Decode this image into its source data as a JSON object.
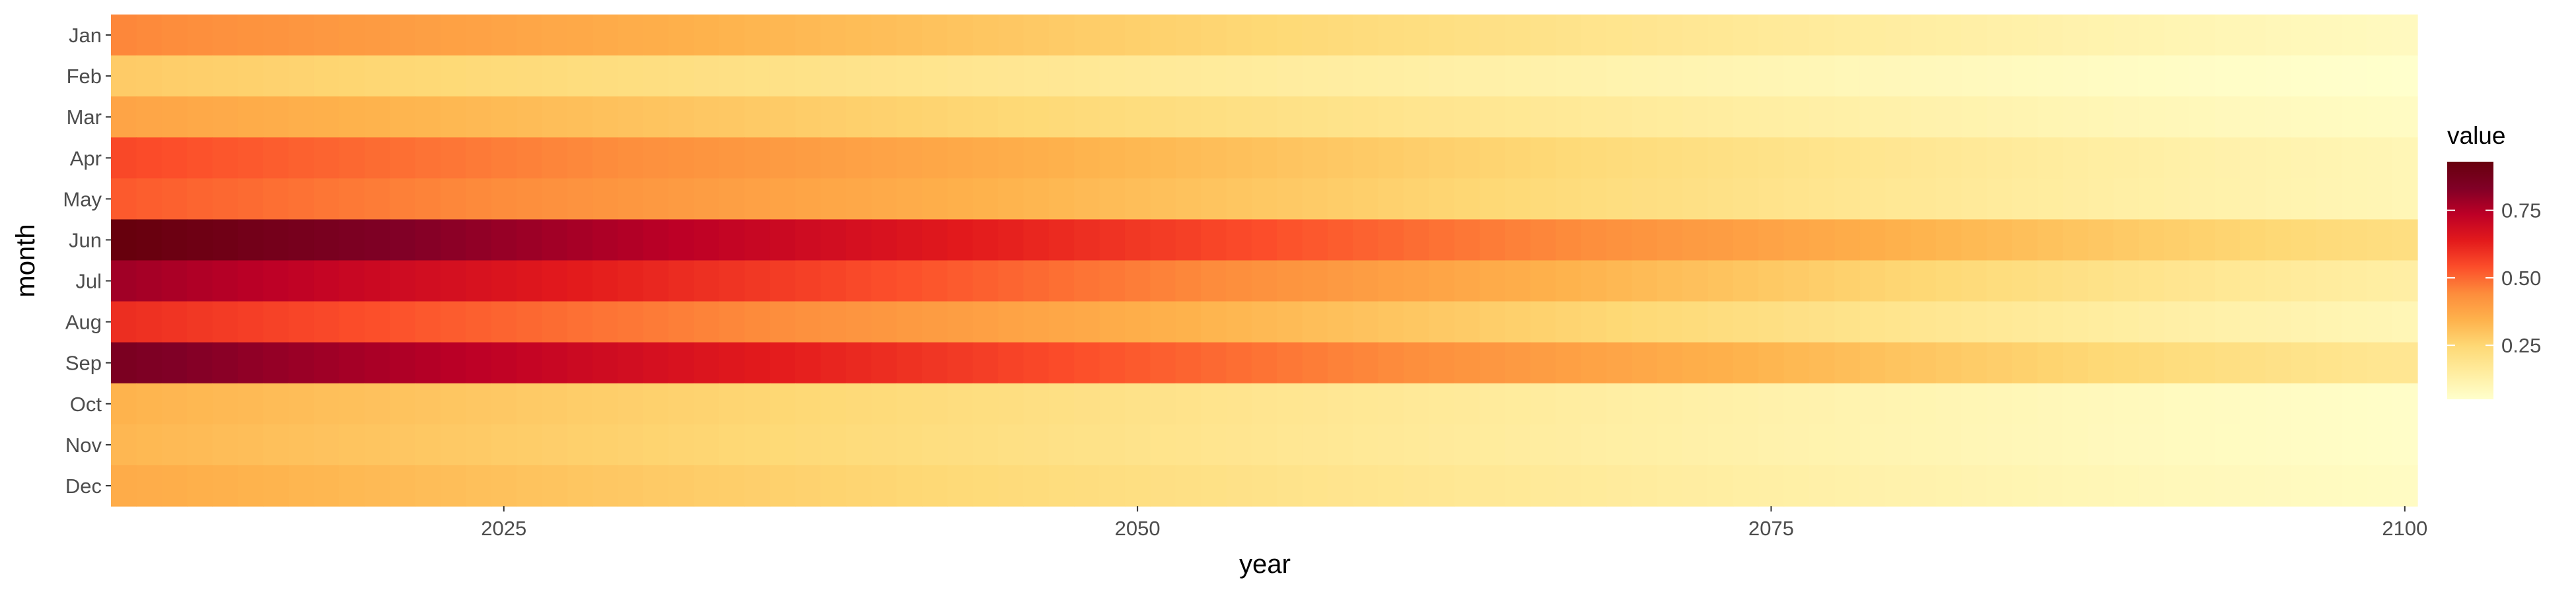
{
  "chart_data": {
    "type": "heatmap",
    "xlabel": "year",
    "ylabel": "month",
    "x_range": [
      2010,
      2100
    ],
    "x_ticks": [
      "2025",
      "2050",
      "2075",
      "2100"
    ],
    "y_categories": [
      "Jan",
      "Feb",
      "Mar",
      "Apr",
      "May",
      "Jun",
      "Jul",
      "Aug",
      "Sep",
      "Oct",
      "Nov",
      "Dec"
    ],
    "legend": {
      "title": "value",
      "ticks": [
        "0.25",
        "0.50",
        "0.75"
      ],
      "value_range": [
        0.05,
        0.93
      ],
      "placement": "right",
      "colors": [
        "#ffffcc",
        "#ffeda0",
        "#fed976",
        "#feb24c",
        "#fd8d3c",
        "#fc4e2a",
        "#e31a1c",
        "#bd0026",
        "#800026",
        "#67000d"
      ]
    },
    "series_by_month": [
      {
        "name": "Jan",
        "start": 0.45,
        "end": 0.08
      },
      {
        "name": "Feb",
        "start": 0.28,
        "end": 0.05
      },
      {
        "name": "Mar",
        "start": 0.38,
        "end": 0.07
      },
      {
        "name": "Apr",
        "start": 0.55,
        "end": 0.1
      },
      {
        "name": "May",
        "start": 0.52,
        "end": 0.1
      },
      {
        "name": "Jun",
        "start": 0.93,
        "end": 0.22
      },
      {
        "name": "Jul",
        "start": 0.78,
        "end": 0.14
      },
      {
        "name": "Aug",
        "start": 0.6,
        "end": 0.1
      },
      {
        "name": "Sep",
        "start": 0.85,
        "end": 0.18
      },
      {
        "name": "Oct",
        "start": 0.34,
        "end": 0.06
      },
      {
        "name": "Nov",
        "start": 0.33,
        "end": 0.06
      },
      {
        "name": "Dec",
        "start": 0.36,
        "end": 0.07
      }
    ],
    "grid": false
  }
}
